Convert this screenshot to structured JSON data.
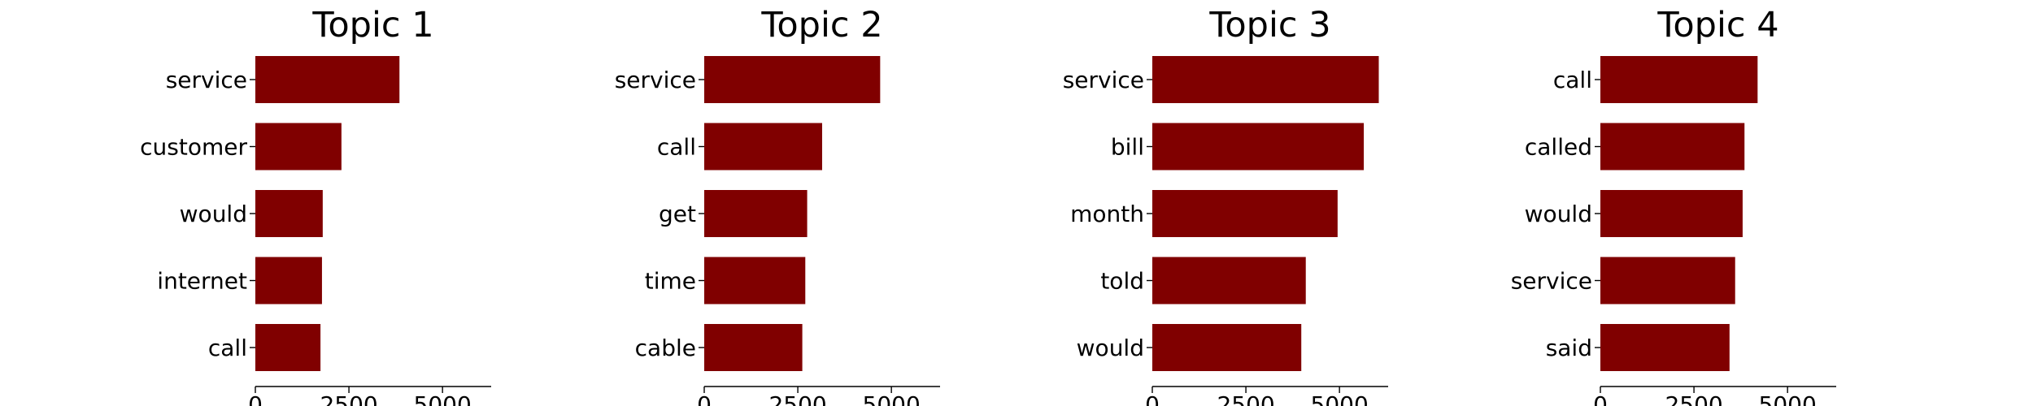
{
  "chart_data": [
    {
      "type": "bar",
      "orientation": "horizontal",
      "title": "Topic 1",
      "categories": [
        "service",
        "customer",
        "would",
        "internet",
        "call"
      ],
      "values": [
        3850,
        2300,
        1800,
        1780,
        1740
      ],
      "xlim": [
        0,
        6300
      ],
      "xticks": [
        "0",
        "2500",
        "5000"
      ],
      "color": "#800000"
    },
    {
      "type": "bar",
      "orientation": "horizontal",
      "title": "Topic 2",
      "categories": [
        "service",
        "call",
        "get",
        "time",
        "cable"
      ],
      "values": [
        4700,
        3150,
        2750,
        2700,
        2620
      ],
      "xlim": [
        0,
        6300
      ],
      "xticks": [
        "0",
        "2500",
        "5000"
      ],
      "color": "#800000"
    },
    {
      "type": "bar",
      "orientation": "horizontal",
      "title": "Topic 3",
      "categories": [
        "service",
        "bill",
        "month",
        "told",
        "would"
      ],
      "values": [
        6050,
        5650,
        4950,
        4100,
        3980
      ],
      "xlim": [
        0,
        6300
      ],
      "xticks": [
        "0",
        "2500",
        "5000"
      ],
      "color": "#800000"
    },
    {
      "type": "bar",
      "orientation": "horizontal",
      "title": "Topic 4",
      "categories": [
        "call",
        "called",
        "would",
        "service",
        "said"
      ],
      "values": [
        4200,
        3850,
        3800,
        3600,
        3450
      ],
      "xlim": [
        0,
        6300
      ],
      "xticks": [
        "0",
        "2500",
        "5000"
      ],
      "color": "#800000"
    }
  ]
}
